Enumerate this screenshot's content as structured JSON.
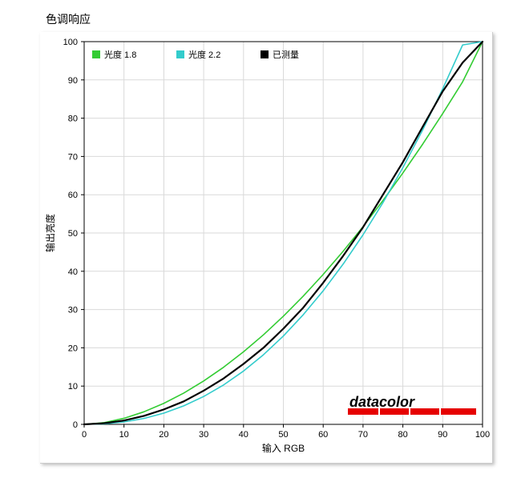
{
  "title": "色调响应",
  "chart": {
    "type": "line",
    "background_color": "#ffffff",
    "grid_color": "#d9d9d9",
    "axis_color": "#000000",
    "tick_fontsize": 11,
    "label_fontsize": 12,
    "x": {
      "label": "输入 RGB",
      "lim": [
        0,
        100
      ],
      "tick_step": 10
    },
    "y": {
      "label": "输出亮度",
      "lim": [
        0,
        100
      ],
      "tick_step": 10
    },
    "legend": {
      "items": [
        {
          "label": "光度 1.8",
          "color": "#33cc33",
          "swatch": "square"
        },
        {
          "label": "光度 2.2",
          "color": "#33cccc",
          "swatch": "square"
        },
        {
          "label": "已测量",
          "color": "#000000",
          "swatch": "square"
        }
      ],
      "position": "top-left-inside"
    },
    "series": [
      {
        "name": "gamma_1_8",
        "color": "#33cc33",
        "line_width": 1.6,
        "x": [
          0,
          5,
          10,
          15,
          20,
          25,
          30,
          35,
          40,
          45,
          50,
          55,
          60,
          65,
          70,
          75,
          80,
          85,
          90,
          95,
          100
        ],
        "y": [
          0.0,
          0.45,
          1.58,
          3.28,
          5.49,
          8.18,
          11.33,
          14.92,
          18.95,
          23.39,
          28.25,
          33.51,
          39.17,
          45.22,
          51.66,
          58.48,
          65.68,
          73.25,
          81.2,
          89.51,
          100.0
        ]
      },
      {
        "name": "gamma_2_2",
        "color": "#33cccc",
        "line_width": 1.6,
        "x": [
          0,
          5,
          10,
          15,
          20,
          25,
          30,
          35,
          40,
          45,
          50,
          55,
          60,
          65,
          70,
          75,
          80,
          85,
          90,
          95,
          100
        ],
        "y": [
          0.0,
          0.14,
          0.63,
          1.54,
          2.93,
          4.83,
          7.28,
          10.3,
          13.93,
          18.18,
          23.08,
          28.65,
          34.9,
          41.86,
          49.53,
          57.93,
          67.08,
          76.99,
          87.67,
          99.14,
          100.0
        ]
      },
      {
        "name": "measured",
        "color": "#000000",
        "line_width": 2.2,
        "x": [
          0,
          5,
          10,
          15,
          20,
          25,
          30,
          35,
          40,
          45,
          50,
          55,
          60,
          65,
          70,
          75,
          80,
          85,
          90,
          95,
          100
        ],
        "y": [
          0.0,
          0.3,
          1.0,
          2.2,
          3.9,
          6.0,
          8.8,
          12.0,
          15.8,
          20.0,
          25.0,
          30.5,
          37.0,
          44.0,
          51.5,
          60.0,
          68.5,
          77.8,
          87.0,
          94.5,
          100.0
        ]
      }
    ]
  },
  "brand": {
    "text": "datacolor",
    "text_color": "#000000",
    "bar_color": "#e60000",
    "position": "bottom-right-inside"
  }
}
